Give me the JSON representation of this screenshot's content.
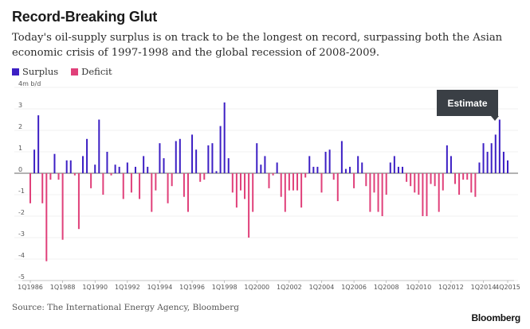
{
  "title": "Record-Breaking Glut",
  "subtitle": "Today's oil-supply surplus is on track to be the longest on record, surpassing both the Asian economic crisis of 1997-1998 and the global recession of 2008-2009.",
  "legend": {
    "surplus": "Surplus",
    "deficit": "Deficit"
  },
  "source": "Source: The International Energy Agency, Bloomberg",
  "brand": "Bloomberg",
  "callout": "Estimate",
  "colors": {
    "surplus": "#3c1fc4",
    "deficit": "#e0407a",
    "zero_line": "#333333",
    "gridline": "#e6e6e6",
    "callout_bg": "#3a3f45"
  },
  "chart_data": {
    "type": "bar",
    "unit_label": "4m b/d",
    "ylim": [
      -5,
      4
    ],
    "yticks": [
      "4m b/d",
      "3",
      "2",
      "1",
      "0",
      "-1",
      "-2",
      "-3",
      "-4",
      "-5"
    ],
    "xtick_labels": [
      "1Q1986",
      "1Q1988",
      "1Q1990",
      "1Q1992",
      "1Q1994",
      "1Q1996",
      "1Q1998",
      "1Q2000",
      "1Q2002",
      "1Q2004",
      "1Q2006",
      "1Q2008",
      "1Q2010",
      "1Q2012",
      "1Q2014",
      "4Q2015"
    ],
    "x_range": [
      "1Q1986",
      "4Q2015"
    ],
    "values": [
      -1.4,
      1.1,
      2.7,
      -1.4,
      -4.1,
      -0.3,
      0.9,
      -0.3,
      -3.1,
      0.6,
      0.6,
      -0.1,
      -2.6,
      0.8,
      1.6,
      -0.7,
      0.4,
      2.5,
      -1.0,
      1.0,
      -0.1,
      0.4,
      0.3,
      -1.2,
      0.5,
      -0.9,
      0.3,
      -1.2,
      0.8,
      0.3,
      -1.8,
      -0.8,
      1.4,
      0.7,
      -1.4,
      -0.6,
      1.5,
      1.6,
      -1.1,
      -1.8,
      1.8,
      1.1,
      -0.4,
      -0.3,
      1.3,
      1.4,
      0.1,
      2.2,
      3.3,
      0.7,
      -0.9,
      -1.6,
      -0.8,
      -1.2,
      -3.0,
      -1.8,
      1.4,
      0.4,
      0.8,
      -0.7,
      -0.1,
      0.5,
      -1.1,
      -1.8,
      -0.8,
      -0.8,
      -0.8,
      -1.6,
      -0.2,
      0.8,
      0.3,
      0.3,
      -0.9,
      1.0,
      1.1,
      -0.3,
      -1.3,
      1.5,
      0.2,
      0.3,
      -0.7,
      0.8,
      0.5,
      -0.6,
      -1.8,
      -0.9,
      -1.8,
      -2.0,
      -1.0,
      0.5,
      0.8,
      0.3,
      0.3,
      -0.4,
      -0.6,
      -0.9,
      -1.0,
      -2.0,
      -2.0,
      -0.5,
      -0.6,
      -1.8,
      -0.8,
      1.3,
      0.8,
      -0.5,
      -1.0,
      -0.3,
      -0.3,
      -0.9,
      -1.1,
      0.5,
      1.4,
      1.0,
      1.4,
      1.8,
      2.5,
      1.0,
      0.6
    ]
  }
}
